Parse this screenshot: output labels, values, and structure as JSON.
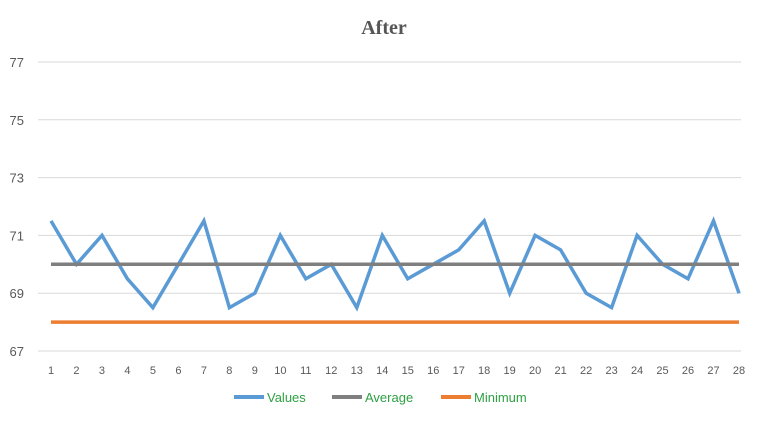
{
  "chart_data": {
    "type": "line",
    "title": "After",
    "xlabel": "",
    "ylabel": "",
    "x": [
      1,
      2,
      3,
      4,
      5,
      6,
      7,
      8,
      9,
      10,
      11,
      12,
      13,
      14,
      15,
      16,
      17,
      18,
      19,
      20,
      21,
      22,
      23,
      24,
      25,
      26,
      27,
      28
    ],
    "ylim": [
      67,
      77
    ],
    "yticks": [
      67,
      69,
      71,
      73,
      75,
      77
    ],
    "grid": true,
    "legend_position": "bottom",
    "series": [
      {
        "name": "Values",
        "color": "#5b9bd5",
        "values": [
          71.5,
          70,
          71,
          69.5,
          68.5,
          70,
          71.5,
          68.5,
          69,
          71,
          69.5,
          70,
          68.5,
          71,
          69.5,
          70,
          70.5,
          71.5,
          69,
          71,
          70.5,
          69,
          68.5,
          71,
          70,
          69.5,
          71.5,
          69
        ]
      },
      {
        "name": "Average",
        "color": "#7f7f7f",
        "values": [
          70,
          70,
          70,
          70,
          70,
          70,
          70,
          70,
          70,
          70,
          70,
          70,
          70,
          70,
          70,
          70,
          70,
          70,
          70,
          70,
          70,
          70,
          70,
          70,
          70,
          70,
          70,
          70
        ]
      },
      {
        "name": "Minimum",
        "color": "#ed7d31",
        "values": [
          68,
          68,
          68,
          68,
          68,
          68,
          68,
          68,
          68,
          68,
          68,
          68,
          68,
          68,
          68,
          68,
          68,
          68,
          68,
          68,
          68,
          68,
          68,
          68,
          68,
          68,
          68,
          68
        ]
      }
    ]
  }
}
